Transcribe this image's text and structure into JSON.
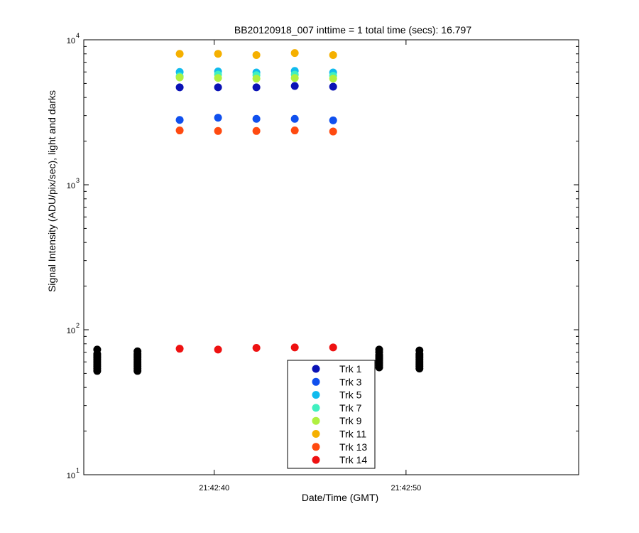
{
  "chart_data": {
    "type": "scatter",
    "title": "BB20120918_007 inttime = 1 total time (secs): 16.797",
    "xlabel": "Date/Time (GMT)",
    "ylabel": "Signal Intensity (ADU/pix/sec), light and darks",
    "y_scale": "log",
    "ylim": [
      10,
      10000
    ],
    "xlim": [
      "21:42:33.2",
      "21:42:59.0"
    ],
    "x_ticks": [
      {
        "time": "21:42:40",
        "label": "21:42:40"
      },
      {
        "time": "21:42:50",
        "label": "21:42:50"
      }
    ],
    "y_ticks": [
      {
        "value": 10,
        "base": "10",
        "exp": "1"
      },
      {
        "value": 100,
        "base": "10",
        "exp": "2"
      },
      {
        "value": 1000,
        "base": "10",
        "exp": "3"
      },
      {
        "value": 10000,
        "base": "10",
        "exp": "4"
      }
    ],
    "grid": false,
    "legend_position": "bottom-center",
    "series": [
      {
        "name": "Trk 1",
        "color": "#0a12b5",
        "points": [
          [
            "21:42:38.2",
            4700
          ],
          [
            "21:42:40.2",
            4700
          ],
          [
            "21:42:42.2",
            4700
          ],
          [
            "21:42:44.2",
            4800
          ],
          [
            "21:42:46.2",
            4750
          ]
        ]
      },
      {
        "name": "Trk 3",
        "color": "#1050ee",
        "points": [
          [
            "21:42:38.2",
            2800
          ],
          [
            "21:42:40.2",
            2900
          ],
          [
            "21:42:42.2",
            2850
          ],
          [
            "21:42:44.2",
            2850
          ],
          [
            "21:42:46.2",
            2780
          ]
        ]
      },
      {
        "name": "Trk 5",
        "color": "#10bbee",
        "points": [
          [
            "21:42:38.2",
            6000
          ],
          [
            "21:42:40.2",
            6050
          ],
          [
            "21:42:42.2",
            5950
          ],
          [
            "21:42:44.2",
            6100
          ],
          [
            "21:42:46.2",
            5950
          ]
        ]
      },
      {
        "name": "Trk 7",
        "color": "#40f0c0",
        "points": [
          [
            "21:42:38.2",
            5600
          ],
          [
            "21:42:40.2",
            5750
          ],
          [
            "21:42:42.2",
            5700
          ],
          [
            "21:42:44.2",
            5750
          ],
          [
            "21:42:46.2",
            5650
          ]
        ]
      },
      {
        "name": "Trk 9",
        "color": "#b0f040",
        "points": [
          [
            "21:42:38.2",
            5500
          ],
          [
            "21:42:40.2",
            5450
          ],
          [
            "21:42:42.2",
            5400
          ],
          [
            "21:42:44.2",
            5450
          ],
          [
            "21:42:46.2",
            5400
          ]
        ]
      },
      {
        "name": "Trk 11",
        "color": "#f5b000",
        "points": [
          [
            "21:42:38.2",
            8000
          ],
          [
            "21:42:40.2",
            8000
          ],
          [
            "21:42:42.2",
            7850
          ],
          [
            "21:42:44.2",
            8100
          ],
          [
            "21:42:46.2",
            7850
          ]
        ]
      },
      {
        "name": "Trk 13",
        "color": "#ff4a10",
        "points": [
          [
            "21:42:38.2",
            2370
          ],
          [
            "21:42:40.2",
            2350
          ],
          [
            "21:42:42.2",
            2350
          ],
          [
            "21:42:44.2",
            2370
          ],
          [
            "21:42:46.2",
            2330
          ]
        ]
      },
      {
        "name": "Trk 14",
        "color": "#ee1111",
        "points": [
          [
            "21:42:38.2",
            74
          ],
          [
            "21:42:40.2",
            73
          ],
          [
            "21:42:42.2",
            75
          ],
          [
            "21:42:44.2",
            75.5
          ],
          [
            "21:42:46.2",
            75.5
          ]
        ]
      }
    ],
    "darks": {
      "color": "#000000",
      "groups": [
        {
          "time": "21:42:33.9",
          "values": [
            52,
            54,
            56,
            58,
            60,
            62,
            64,
            66,
            68,
            73
          ]
        },
        {
          "time": "21:42:36.0",
          "values": [
            52,
            54,
            56,
            58,
            60,
            62,
            64,
            66,
            68,
            71
          ]
        },
        {
          "time": "21:42:48.6",
          "values": [
            55,
            57,
            59,
            61,
            63,
            65,
            67,
            70,
            73
          ]
        },
        {
          "time": "21:42:50.7",
          "values": [
            54,
            56,
            58,
            60,
            62,
            64,
            66,
            68,
            72
          ]
        }
      ]
    }
  }
}
